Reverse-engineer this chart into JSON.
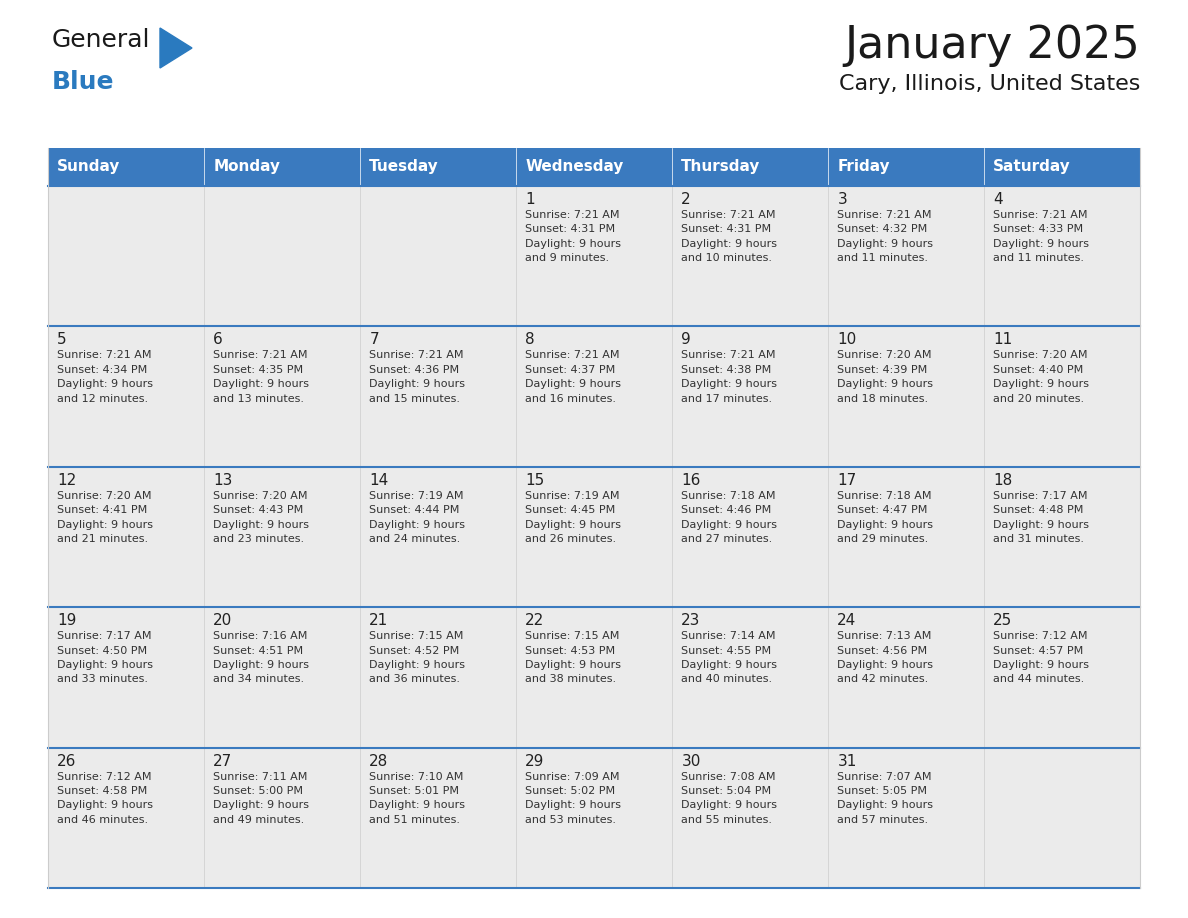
{
  "title": "January 2025",
  "subtitle": "Cary, Illinois, United States",
  "header_bg": "#3a7abf",
  "header_text_color": "#ffffff",
  "cell_bg": "#ebebeb",
  "day_number_color": "#222222",
  "cell_text_color": "#333333",
  "row_separator_color": "#3a7abf",
  "col_separator_color": "#cccccc",
  "days_of_week": [
    "Sunday",
    "Monday",
    "Tuesday",
    "Wednesday",
    "Thursday",
    "Friday",
    "Saturday"
  ],
  "weeks": [
    [
      {
        "day": "",
        "info": ""
      },
      {
        "day": "",
        "info": ""
      },
      {
        "day": "",
        "info": ""
      },
      {
        "day": "1",
        "info": "Sunrise: 7:21 AM\nSunset: 4:31 PM\nDaylight: 9 hours\nand 9 minutes."
      },
      {
        "day": "2",
        "info": "Sunrise: 7:21 AM\nSunset: 4:31 PM\nDaylight: 9 hours\nand 10 minutes."
      },
      {
        "day": "3",
        "info": "Sunrise: 7:21 AM\nSunset: 4:32 PM\nDaylight: 9 hours\nand 11 minutes."
      },
      {
        "day": "4",
        "info": "Sunrise: 7:21 AM\nSunset: 4:33 PM\nDaylight: 9 hours\nand 11 minutes."
      }
    ],
    [
      {
        "day": "5",
        "info": "Sunrise: 7:21 AM\nSunset: 4:34 PM\nDaylight: 9 hours\nand 12 minutes."
      },
      {
        "day": "6",
        "info": "Sunrise: 7:21 AM\nSunset: 4:35 PM\nDaylight: 9 hours\nand 13 minutes."
      },
      {
        "day": "7",
        "info": "Sunrise: 7:21 AM\nSunset: 4:36 PM\nDaylight: 9 hours\nand 15 minutes."
      },
      {
        "day": "8",
        "info": "Sunrise: 7:21 AM\nSunset: 4:37 PM\nDaylight: 9 hours\nand 16 minutes."
      },
      {
        "day": "9",
        "info": "Sunrise: 7:21 AM\nSunset: 4:38 PM\nDaylight: 9 hours\nand 17 minutes."
      },
      {
        "day": "10",
        "info": "Sunrise: 7:20 AM\nSunset: 4:39 PM\nDaylight: 9 hours\nand 18 minutes."
      },
      {
        "day": "11",
        "info": "Sunrise: 7:20 AM\nSunset: 4:40 PM\nDaylight: 9 hours\nand 20 minutes."
      }
    ],
    [
      {
        "day": "12",
        "info": "Sunrise: 7:20 AM\nSunset: 4:41 PM\nDaylight: 9 hours\nand 21 minutes."
      },
      {
        "day": "13",
        "info": "Sunrise: 7:20 AM\nSunset: 4:43 PM\nDaylight: 9 hours\nand 23 minutes."
      },
      {
        "day": "14",
        "info": "Sunrise: 7:19 AM\nSunset: 4:44 PM\nDaylight: 9 hours\nand 24 minutes."
      },
      {
        "day": "15",
        "info": "Sunrise: 7:19 AM\nSunset: 4:45 PM\nDaylight: 9 hours\nand 26 minutes."
      },
      {
        "day": "16",
        "info": "Sunrise: 7:18 AM\nSunset: 4:46 PM\nDaylight: 9 hours\nand 27 minutes."
      },
      {
        "day": "17",
        "info": "Sunrise: 7:18 AM\nSunset: 4:47 PM\nDaylight: 9 hours\nand 29 minutes."
      },
      {
        "day": "18",
        "info": "Sunrise: 7:17 AM\nSunset: 4:48 PM\nDaylight: 9 hours\nand 31 minutes."
      }
    ],
    [
      {
        "day": "19",
        "info": "Sunrise: 7:17 AM\nSunset: 4:50 PM\nDaylight: 9 hours\nand 33 minutes."
      },
      {
        "day": "20",
        "info": "Sunrise: 7:16 AM\nSunset: 4:51 PM\nDaylight: 9 hours\nand 34 minutes."
      },
      {
        "day": "21",
        "info": "Sunrise: 7:15 AM\nSunset: 4:52 PM\nDaylight: 9 hours\nand 36 minutes."
      },
      {
        "day": "22",
        "info": "Sunrise: 7:15 AM\nSunset: 4:53 PM\nDaylight: 9 hours\nand 38 minutes."
      },
      {
        "day": "23",
        "info": "Sunrise: 7:14 AM\nSunset: 4:55 PM\nDaylight: 9 hours\nand 40 minutes."
      },
      {
        "day": "24",
        "info": "Sunrise: 7:13 AM\nSunset: 4:56 PM\nDaylight: 9 hours\nand 42 minutes."
      },
      {
        "day": "25",
        "info": "Sunrise: 7:12 AM\nSunset: 4:57 PM\nDaylight: 9 hours\nand 44 minutes."
      }
    ],
    [
      {
        "day": "26",
        "info": "Sunrise: 7:12 AM\nSunset: 4:58 PM\nDaylight: 9 hours\nand 46 minutes."
      },
      {
        "day": "27",
        "info": "Sunrise: 7:11 AM\nSunset: 5:00 PM\nDaylight: 9 hours\nand 49 minutes."
      },
      {
        "day": "28",
        "info": "Sunrise: 7:10 AM\nSunset: 5:01 PM\nDaylight: 9 hours\nand 51 minutes."
      },
      {
        "day": "29",
        "info": "Sunrise: 7:09 AM\nSunset: 5:02 PM\nDaylight: 9 hours\nand 53 minutes."
      },
      {
        "day": "30",
        "info": "Sunrise: 7:08 AM\nSunset: 5:04 PM\nDaylight: 9 hours\nand 55 minutes."
      },
      {
        "day": "31",
        "info": "Sunrise: 7:07 AM\nSunset: 5:05 PM\nDaylight: 9 hours\nand 57 minutes."
      },
      {
        "day": "",
        "info": ""
      }
    ]
  ],
  "logo_general_color": "#1a1a1a",
  "logo_blue_color": "#2a7abf",
  "logo_triangle_color": "#2a7abf",
  "title_fontsize": 32,
  "subtitle_fontsize": 16,
  "header_fontsize": 11,
  "day_number_fontsize": 11,
  "cell_text_fontsize": 8
}
